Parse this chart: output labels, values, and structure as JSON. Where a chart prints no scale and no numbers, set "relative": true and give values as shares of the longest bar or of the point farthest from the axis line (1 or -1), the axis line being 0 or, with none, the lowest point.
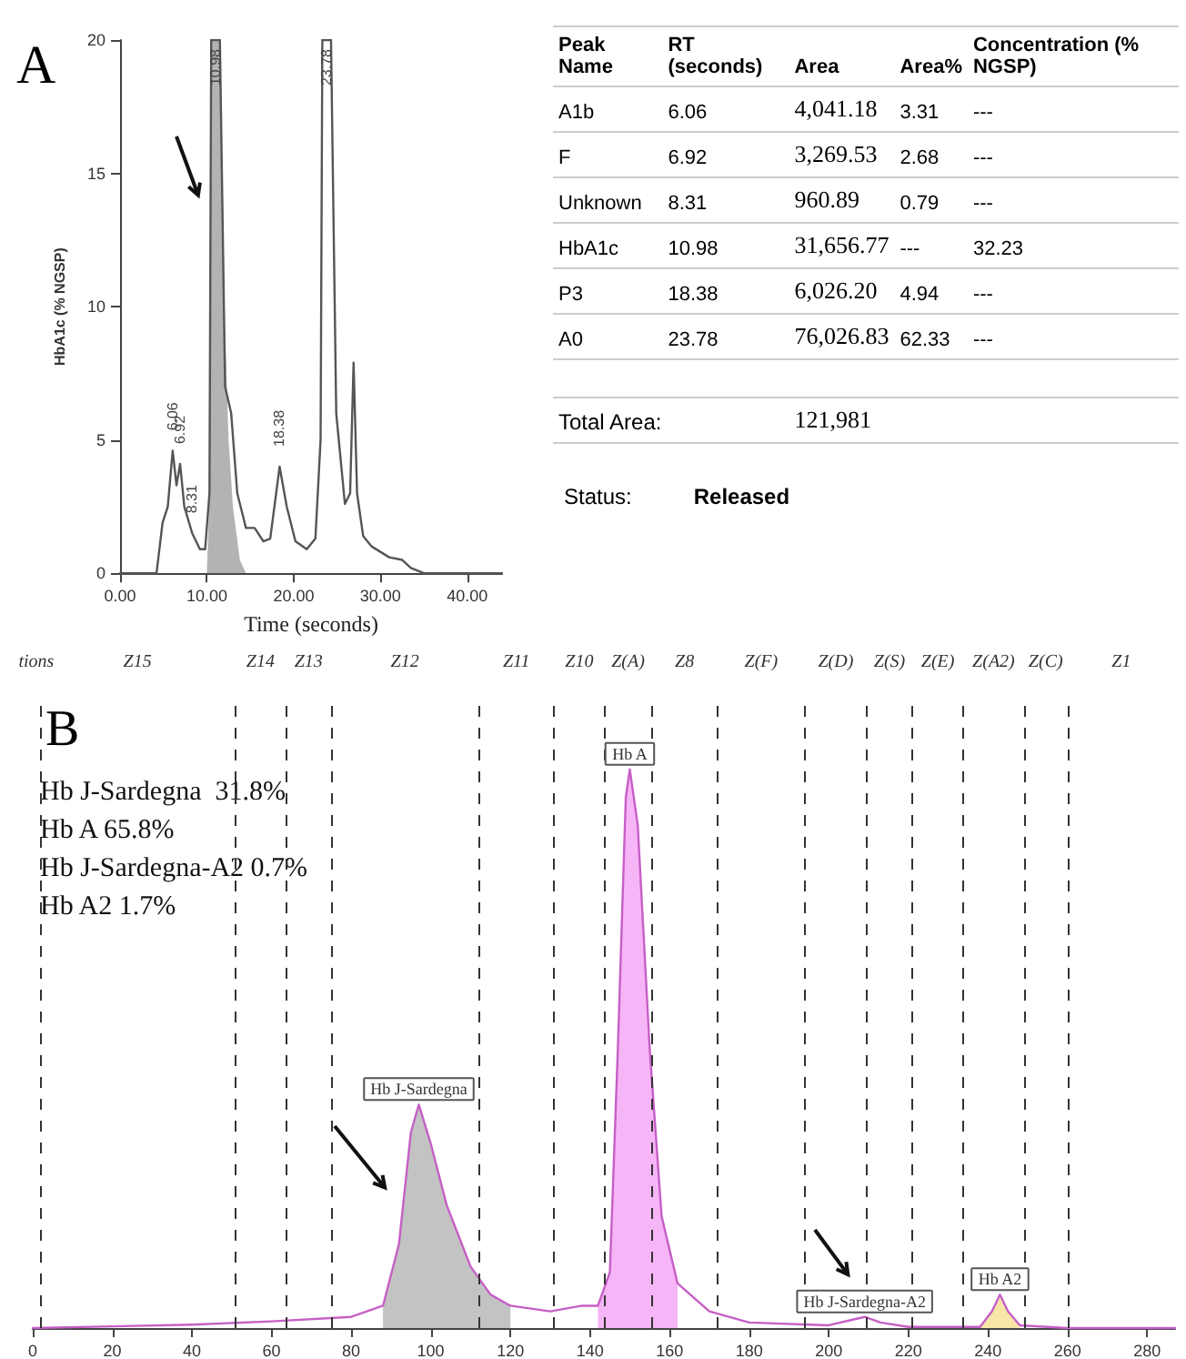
{
  "chart_data": [
    {
      "type": "line",
      "title": "A",
      "xlabel": "Time (seconds)",
      "ylabel": "HbA1c (% NGSP)",
      "series": [
        {
          "type": "line",
          "color": "#555555",
          "x": [
            0,
            4.2,
            4.9,
            5.5,
            6.06,
            6.5,
            6.92,
            7.4,
            8.31,
            9.2,
            9.8,
            10.3,
            10.5,
            11.5,
            12.1,
            12.8,
            13.5,
            14.5,
            15.5,
            16.5,
            17.3,
            18.38,
            19.2,
            20.2,
            21.5,
            22.5,
            23.1,
            23.3,
            24.3,
            24.9,
            25.9,
            26.5,
            26.9,
            27.3,
            28,
            29,
            31,
            32.5,
            33.5,
            35,
            44
          ],
          "values": [
            0,
            0,
            1.9,
            2.5,
            4.6,
            3.3,
            4.1,
            2.5,
            1.5,
            0.9,
            0.9,
            3,
            20,
            20,
            7,
            6,
            3,
            1.7,
            1.7,
            1.2,
            1.3,
            4.0,
            2.5,
            1.2,
            0.9,
            1.3,
            5,
            20,
            20,
            6,
            2.6,
            3,
            7.9,
            3,
            1.4,
            1,
            0.6,
            0.5,
            0.2,
            0,
            0
          ]
        },
        {
          "type": "area",
          "color": "#a6a6a6",
          "x": [
            10,
            10.3,
            10.5,
            11.5,
            12,
            12.5,
            13,
            13.8,
            14.5
          ],
          "values": [
            0,
            3,
            20,
            20,
            10,
            5,
            2.5,
            0.5,
            0
          ]
        }
      ],
      "xlim": [
        0,
        44
      ],
      "ylim": [
        0,
        20
      ],
      "xticks": [
        {
          "value": 0,
          "label": "0.00"
        },
        {
          "value": 10,
          "label": "10.00"
        },
        {
          "value": 20,
          "label": "20.00"
        },
        {
          "value": 30,
          "label": "30.00"
        },
        {
          "value": 40,
          "label": "40.00"
        }
      ],
      "yticks": [
        0,
        5,
        10,
        15,
        20
      ],
      "annotations": [
        {
          "text": "6.06",
          "x": 6.06,
          "y": 4.6
        },
        {
          "text": "6.92",
          "x": 6.92,
          "y": 4.1
        },
        {
          "text": "8.31",
          "x": 8.31,
          "y": 1.5
        },
        {
          "text": "10.98",
          "x": 10.98,
          "y": 20
        },
        {
          "text": "18.38",
          "x": 18.38,
          "y": 4.0
        },
        {
          "text": "23.78",
          "x": 23.78,
          "y": 20
        }
      ]
    },
    {
      "type": "other",
      "categories": [
        "Peak Name",
        "RT (seconds)",
        "Area",
        "Area%",
        "Concentration (% NGSP)"
      ],
      "cell_labels": [
        [
          "A1b",
          "6.06",
          "4,041.18",
          "3.31",
          "---"
        ],
        [
          "F",
          "6.92",
          "3,269.53",
          "2.68",
          "---"
        ],
        [
          "Unknown",
          "8.31",
          "960.89",
          "0.79",
          "---"
        ],
        [
          "HbA1c",
          "10.98",
          "31,656.77",
          "---",
          "32.23"
        ],
        [
          "P3",
          "18.38",
          "6,026.20",
          "4.94",
          "---"
        ],
        [
          "A0",
          "23.78",
          "76,026.83",
          "62.33",
          "---"
        ]
      ],
      "annotations": [
        "Total Area:",
        "121,981",
        "Status:",
        "Released"
      ]
    },
    {
      "type": "line",
      "title": "B",
      "relative": true,
      "series": [
        {
          "type": "line",
          "color": "#c65fc6",
          "x": [
            0,
            20,
            40,
            60,
            80,
            88,
            92,
            95,
            97,
            100,
            104,
            110,
            115,
            120,
            130,
            138,
            142,
            145,
            147,
            149,
            150,
            152,
            155,
            158,
            162,
            170,
            180,
            200,
            206,
            209,
            213,
            220,
            238,
            241,
            243,
            245,
            248,
            260,
            287
          ],
          "values": [
            0,
            0.003,
            0.006,
            0.012,
            0.02,
            0.04,
            0.15,
            0.35,
            0.4,
            0.33,
            0.22,
            0.11,
            0.06,
            0.04,
            0.03,
            0.04,
            0.04,
            0.1,
            0.5,
            0.95,
            1,
            0.9,
            0.5,
            0.2,
            0.08,
            0.03,
            0.01,
            0.005,
            0.015,
            0.02,
            0.01,
            0.002,
            0.002,
            0.03,
            0.06,
            0.03,
            0.005,
            0,
            0
          ]
        },
        {
          "type": "area",
          "color": "#b8b8b8",
          "x": [
            88,
            92,
            95,
            97,
            100,
            104,
            110,
            115,
            120
          ],
          "values": [
            0.04,
            0.15,
            0.35,
            0.4,
            0.33,
            0.22,
            0.11,
            0.06,
            0.04
          ]
        },
        {
          "type": "area",
          "color": "#f4a8f4",
          "x": [
            142,
            145,
            147,
            149,
            150,
            152,
            155,
            158,
            162
          ],
          "values": [
            0.04,
            0.1,
            0.5,
            0.95,
            1,
            0.9,
            0.5,
            0.2,
            0.08
          ]
        },
        {
          "type": "area",
          "color": "#f7e29a",
          "x": [
            238,
            241,
            243,
            245,
            248
          ],
          "values": [
            0.002,
            0.03,
            0.06,
            0.03,
            0.005
          ]
        }
      ],
      "xlim": [
        0,
        287
      ],
      "xticks": [
        0,
        20,
        40,
        60,
        80,
        100,
        120,
        140,
        160,
        180,
        200,
        220,
        240,
        260,
        280
      ],
      "ref_lines": [
        {
          "axis": "x",
          "value": 1.8,
          "line_style": "dashed",
          "color": "#333333"
        },
        {
          "axis": "x",
          "value": 50.8,
          "line_style": "dashed",
          "color": "#333333"
        },
        {
          "axis": "x",
          "value": 63.6,
          "line_style": "dashed",
          "color": "#333333"
        },
        {
          "axis": "x",
          "value": 75,
          "line_style": "dashed",
          "color": "#333333"
        },
        {
          "axis": "x",
          "value": 112,
          "line_style": "dashed",
          "color": "#333333"
        },
        {
          "axis": "x",
          "value": 131,
          "line_style": "dashed",
          "color": "#333333"
        },
        {
          "axis": "x",
          "value": 143.6,
          "line_style": "dashed",
          "color": "#333333"
        },
        {
          "axis": "x",
          "value": 155.5,
          "line_style": "dashed",
          "color": "#333333"
        },
        {
          "axis": "x",
          "value": 172,
          "line_style": "dashed",
          "color": "#333333"
        },
        {
          "axis": "x",
          "value": 194,
          "line_style": "dashed",
          "color": "#333333"
        },
        {
          "axis": "x",
          "value": 209.5,
          "line_style": "dashed",
          "color": "#333333"
        },
        {
          "axis": "x",
          "value": 221,
          "line_style": "dashed",
          "color": "#333333"
        },
        {
          "axis": "x",
          "value": 233.8,
          "line_style": "dashed",
          "color": "#333333"
        },
        {
          "axis": "x",
          "value": 249,
          "line_style": "dashed",
          "color": "#333333"
        },
        {
          "axis": "x",
          "value": 260,
          "line_style": "dashed",
          "color": "#333333"
        }
      ],
      "annotations": [
        "Hb J-Sardegna  31.8%",
        "Hb A 65.8%",
        "Hb J-Sardegna-A2 0.7%",
        "Hb A2 1.7%",
        "tions",
        "Z15",
        "Z14",
        "Z13",
        "Z12",
        "Z11",
        "Z10",
        "Z(A)",
        "Z8",
        "Z(F)",
        "Z(D)",
        "Z(S)",
        "Z(E)",
        "Z(A2)",
        "Z(C)",
        "Z1",
        {
          "text": "Hb A",
          "x": 150,
          "y": 1
        },
        {
          "text": "Hb J-Sardegna",
          "x": 97,
          "y": 0.4
        },
        {
          "text": "Hb J-Sardegna-A2",
          "x": 209,
          "y": 0.02
        },
        {
          "text": "Hb A2",
          "x": 243,
          "y": 0.06
        }
      ]
    }
  ]
}
